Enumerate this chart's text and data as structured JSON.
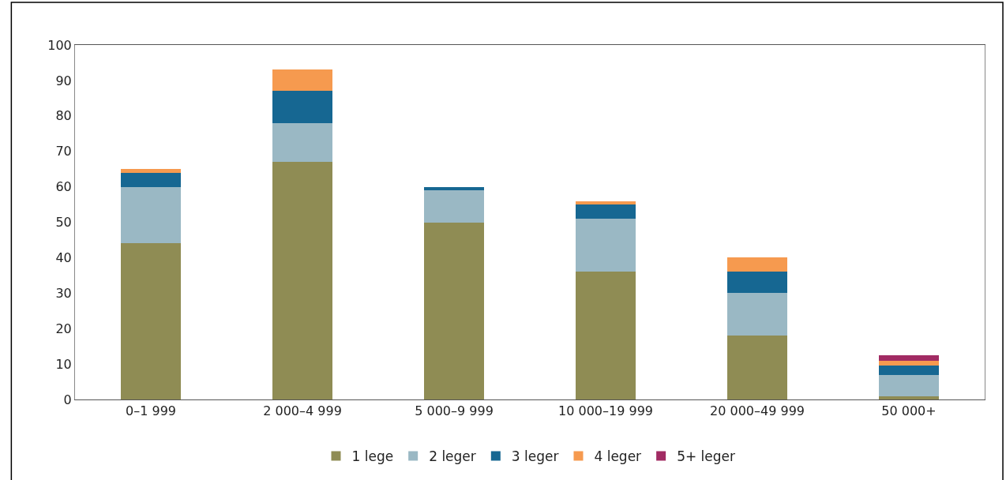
{
  "chart_data": {
    "type": "bar",
    "stacked": true,
    "categories": [
      "0–1 999",
      "2 000–4 999",
      "5 000–9 999",
      "10 000–19 999",
      "20 000–49 999",
      "50 000+"
    ],
    "series": [
      {
        "name": "1 lege",
        "color": "#8f8c54",
        "values": [
          44,
          67,
          50,
          36,
          18,
          1
        ]
      },
      {
        "name": "2 leger",
        "color": "#9ab8c4",
        "values": [
          16,
          11,
          9,
          15,
          12,
          6
        ]
      },
      {
        "name": "3 leger",
        "color": "#166792",
        "values": [
          4,
          9,
          1,
          4,
          6,
          2.5
        ]
      },
      {
        "name": "4 leger",
        "color": "#f69a4f",
        "values": [
          1,
          6,
          null,
          1,
          4,
          1.5
        ]
      },
      {
        "name": "5+ leger",
        "color": "#a12b63",
        "values": [
          null,
          null,
          null,
          null,
          null,
          1.5
        ]
      }
    ],
    "ylim": [
      0,
      100
    ],
    "yticks": [
      0,
      10,
      20,
      30,
      40,
      50,
      60,
      70,
      80,
      90,
      100
    ],
    "legend": "bottom"
  }
}
